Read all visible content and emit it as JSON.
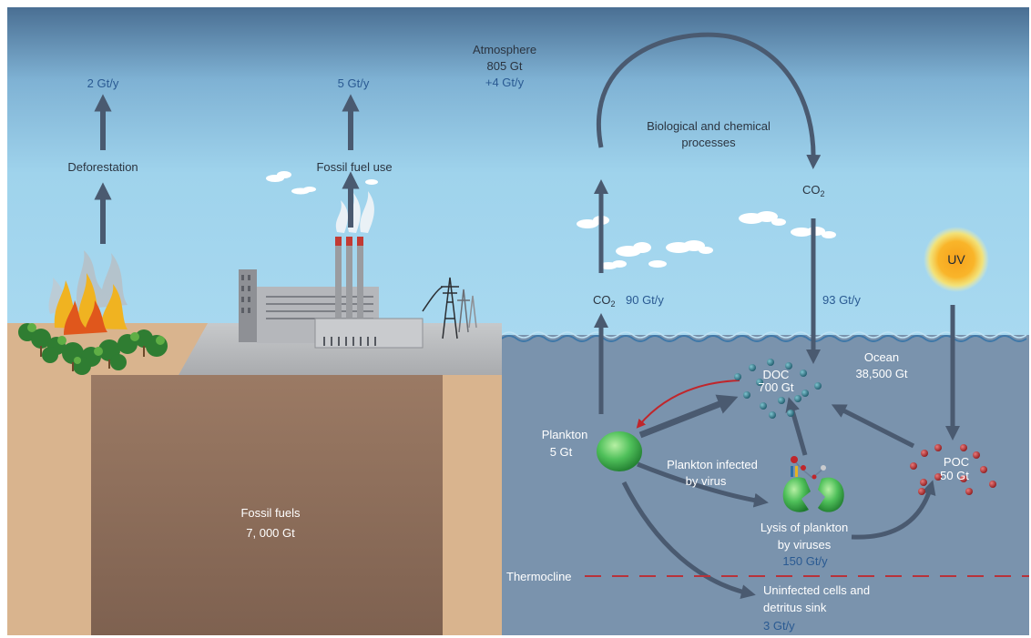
{
  "atmosphere": {
    "title": "Atmosphere",
    "amount": "805 Gt",
    "change": "+4 Gt/y"
  },
  "land": {
    "deforestation_rate": "2 Gt/y",
    "deforestation_label": "Deforestation",
    "fossil_use_rate": "5 Gt/y",
    "fossil_use_label": "Fossil fuel use",
    "fossil_fuels_label": "Fossil fuels",
    "fossil_fuels_amount": "7, 000 Gt"
  },
  "ocean": {
    "bio_chem_line1": "Biological and chemical",
    "bio_chem_line2": "processes",
    "co2_top": "CO",
    "co2_left": "CO",
    "co2_subscript": "2",
    "uptake_rate": "90 Gt/y",
    "release_rate": "93 Gt/y",
    "uv_label": "UV",
    "ocean_label": "Ocean",
    "ocean_amount": "38,500 Gt",
    "doc_label": "DOC",
    "doc_amount": "700 Gt",
    "plankton_label": "Plankton",
    "plankton_amount": "5 Gt",
    "infected_line1": "Plankton infected",
    "infected_line2": "by virus",
    "lysis_line1": "Lysis of plankton",
    "lysis_line2": "by viruses",
    "lysis_rate": "150 Gt/y",
    "poc_label": "POC",
    "poc_amount": "50 Gt",
    "thermocline_label": "Thermocline",
    "sink_line1": "Uninfected cells and",
    "sink_line2": "detritus sink",
    "sink_rate": "3 Gt/y"
  },
  "colors": {
    "sky_top": "#4d7296",
    "sky_bottom": "#9fd3ec",
    "ocean": "#7a93ad",
    "land": "#d9b48e",
    "fossil_pit": "#8a6b58",
    "arrow": "#4a5a70",
    "virus_arrow": "#c0262b",
    "thermocline": "#b8323a",
    "doc_dot": "#2b6b7d",
    "poc_dot": "#b0282a",
    "plankton": "#3fae4a",
    "text_blue": "#2a5a92"
  }
}
